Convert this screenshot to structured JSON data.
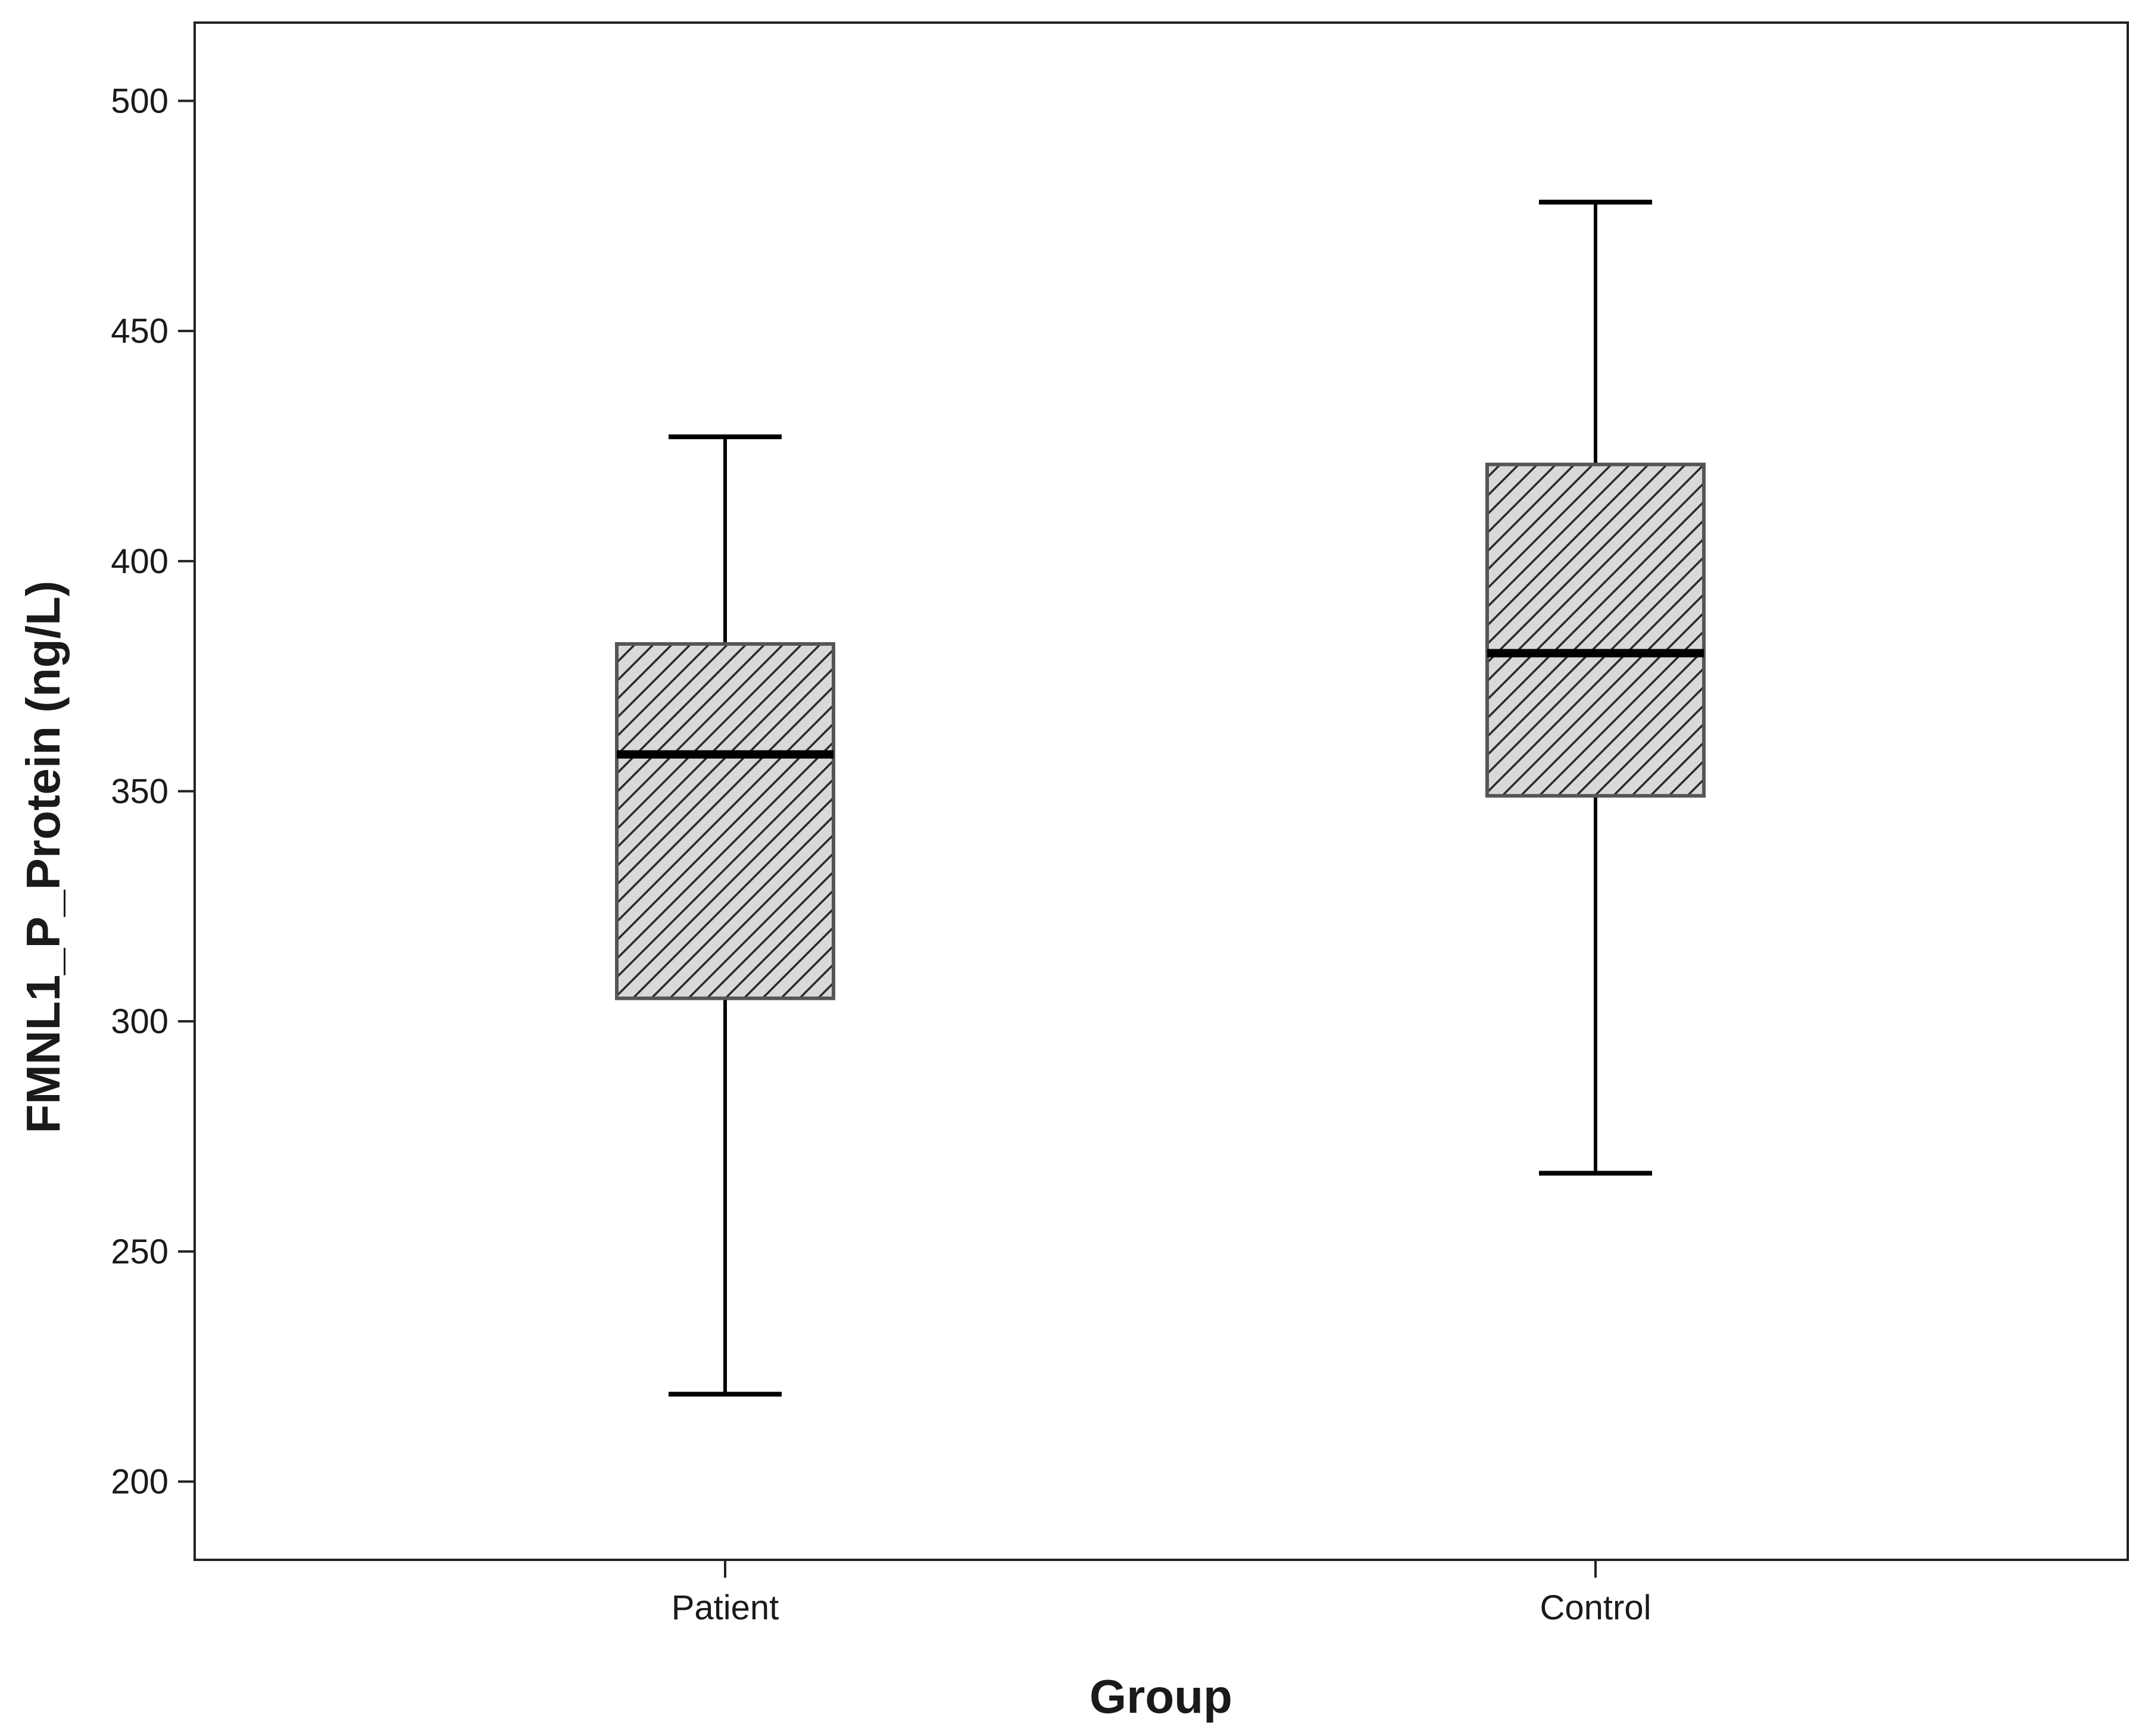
{
  "chart_data": {
    "type": "box",
    "title": "",
    "xlabel": "Group",
    "ylabel": "FMNL1_P_Protein (ng/L)",
    "ylim": [
      183,
      517
    ],
    "yticks": [
      200,
      250,
      300,
      350,
      400,
      450,
      500
    ],
    "grid": false,
    "categories": [
      "Patient",
      "Control"
    ],
    "boxes": [
      {
        "category": "Patient",
        "whisker_low": 219,
        "q1": 305,
        "median": 358,
        "q3": 382,
        "whisker_high": 427
      },
      {
        "category": "Control",
        "whisker_low": 267,
        "q1": 349,
        "median": 380,
        "q3": 421,
        "whisker_high": 478
      }
    ],
    "colors": {
      "box_fill": "#d9d9d9",
      "hatch": "#2a2a2a",
      "box_edge": "#555555",
      "line": "#000000",
      "frame": "#222222"
    }
  }
}
